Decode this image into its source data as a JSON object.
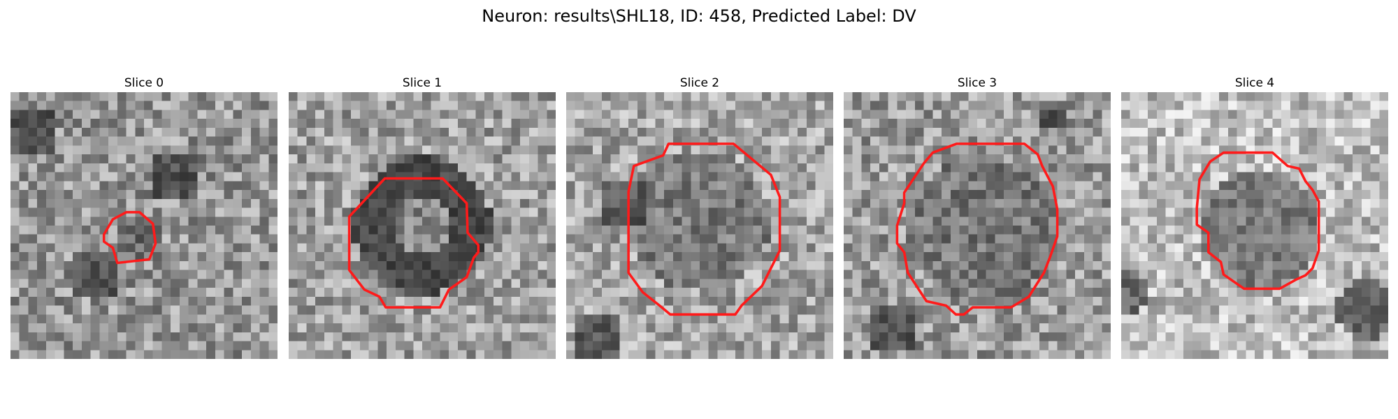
{
  "figure": {
    "title": "Neuron: results\\SHL18, ID: 458, Predicted Label: DV"
  },
  "colors": {
    "contour": "#ff1a1a",
    "background": "#ffffff"
  },
  "slices": [
    {
      "title": "Slice 0"
    },
    {
      "title": "Slice 1"
    },
    {
      "title": "Slice 2"
    },
    {
      "title": "Slice 3"
    },
    {
      "title": "Slice 4"
    }
  ]
}
